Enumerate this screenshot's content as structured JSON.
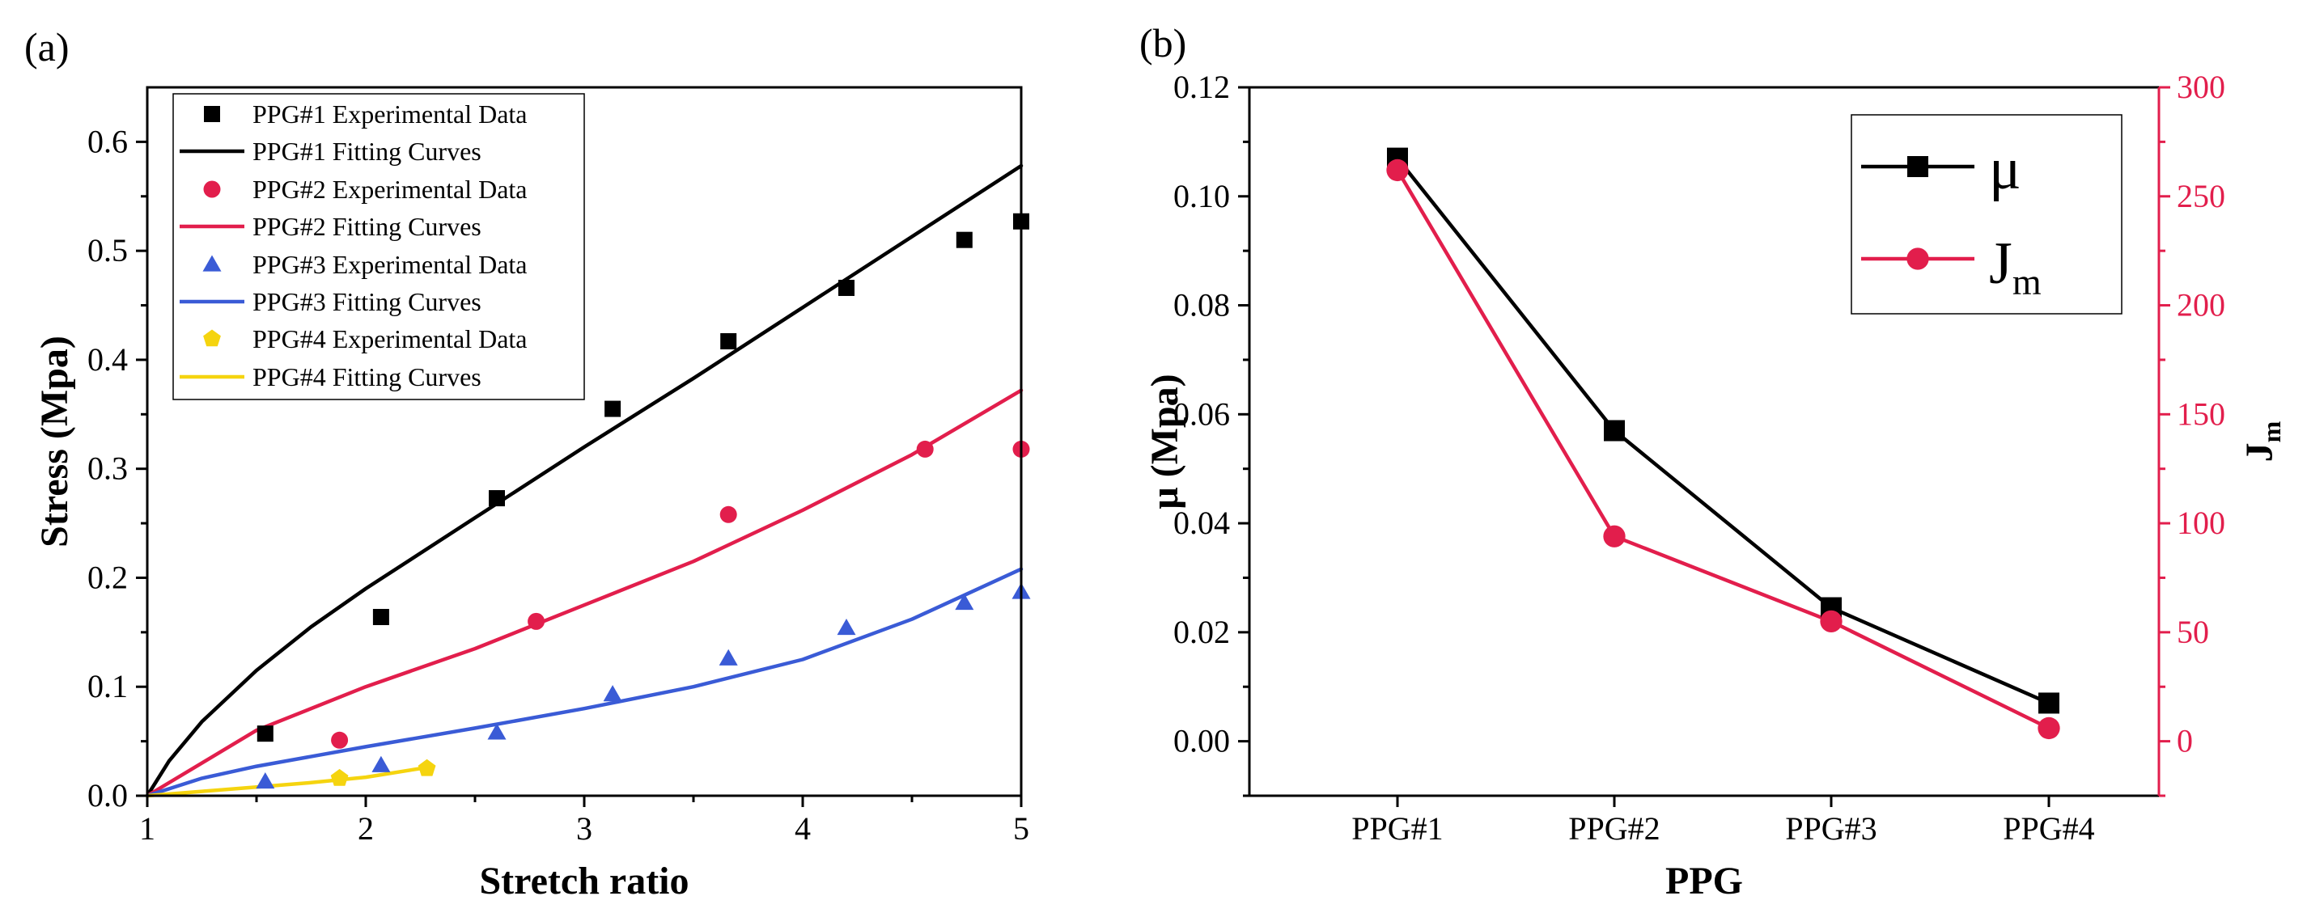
{
  "chart_data": [
    {
      "type": "scatter",
      "panel_label": "(a)",
      "title": "",
      "xlabel": "Stretch ratio",
      "ylabel": "Stress (Mpa)",
      "xlim": [
        1,
        5
      ],
      "ylim": [
        0,
        0.65
      ],
      "xticks": [
        "1",
        "2",
        "3",
        "4",
        "5"
      ],
      "yticks": [
        "0.0",
        "0.1",
        "0.2",
        "0.3",
        "0.4",
        "0.5",
        "0.6"
      ],
      "legend_position": "top-left",
      "legend": [
        "PPG#1 Experimental Data",
        "PPG#1 Fitting Curves",
        "PPG#2 Experimental Data",
        "PPG#2 Fitting Curves",
        "PPG#3 Experimental Data",
        "PPG#3 Fitting Curves",
        "PPG#4 Experimental Data",
        "PPG#4 Fitting Curves"
      ],
      "series": [
        {
          "name": "PPG#1",
          "color": "#000000",
          "marker": "square",
          "data_x": [
            1.54,
            2.07,
            2.6,
            3.13,
            3.66,
            4.2,
            4.74,
            5.0
          ],
          "data_y": [
            0.057,
            0.164,
            0.273,
            0.355,
            0.417,
            0.466,
            0.51,
            0.527
          ],
          "fit_x": [
            1.0,
            1.1,
            1.25,
            1.5,
            1.75,
            2.0,
            2.5,
            3.0,
            3.5,
            4.0,
            4.5,
            5.0
          ],
          "fit_y": [
            0.0,
            0.032,
            0.068,
            0.115,
            0.155,
            0.19,
            0.255,
            0.32,
            0.383,
            0.448,
            0.513,
            0.578
          ]
        },
        {
          "name": "PPG#2",
          "color": "#e21e4c",
          "marker": "circle",
          "data_x": [
            1.88,
            2.78,
            3.66,
            4.56,
            5.0
          ],
          "data_y": [
            0.051,
            0.16,
            0.258,
            0.318,
            0.318
          ],
          "fit_x": [
            1.0,
            1.25,
            1.5,
            2.0,
            2.5,
            3.0,
            3.5,
            4.0,
            4.5,
            5.0
          ],
          "fit_y": [
            0.0,
            0.03,
            0.06,
            0.1,
            0.135,
            0.175,
            0.215,
            0.262,
            0.313,
            0.372
          ]
        },
        {
          "name": "PPG#3",
          "color": "#3a5bd6",
          "marker": "triangle",
          "data_x": [
            1.54,
            2.07,
            2.6,
            3.13,
            3.66,
            4.2,
            4.74,
            5.0
          ],
          "data_y": [
            0.013,
            0.028,
            0.058,
            0.093,
            0.126,
            0.154,
            0.177,
            0.187
          ],
          "fit_x": [
            1.0,
            1.25,
            1.5,
            2.0,
            2.5,
            3.0,
            3.5,
            4.0,
            4.5,
            5.0
          ],
          "fit_y": [
            0.0,
            0.016,
            0.027,
            0.045,
            0.062,
            0.08,
            0.1,
            0.125,
            0.162,
            0.208
          ]
        },
        {
          "name": "PPG#4",
          "color": "#f5d40f",
          "marker": "pentagon",
          "data_x": [
            1.88,
            2.28
          ],
          "data_y": [
            0.016,
            0.025
          ],
          "fit_x": [
            1.0,
            1.25,
            1.5,
            1.75,
            2.0,
            2.28
          ],
          "fit_y": [
            0.0,
            0.004,
            0.008,
            0.012,
            0.017,
            0.026
          ]
        }
      ]
    },
    {
      "type": "line",
      "panel_label": "(b)",
      "title": "",
      "xlabel": "PPG",
      "ylabel_left": "μ (Mpa)",
      "ylabel_right": "Jm",
      "ylabel_right_main": "J",
      "ylabel_right_sub": "m",
      "categories": [
        "PPG#1",
        "PPG#2",
        "PPG#3",
        "PPG#4"
      ],
      "ylim_left": [
        -0.01,
        0.12
      ],
      "ylim_right": [
        -25,
        300
      ],
      "yticks_left": [
        "0.00",
        "0.02",
        "0.04",
        "0.06",
        "0.08",
        "0.10",
        "0.12"
      ],
      "yticks_right": [
        "0",
        "50",
        "100",
        "150",
        "200",
        "250",
        "300"
      ],
      "legend_position": "top-right",
      "legend": [
        "μ",
        "Jm"
      ],
      "legend_main": [
        "μ",
        "J"
      ],
      "legend_sub": [
        "",
        "m"
      ],
      "series": [
        {
          "name": "μ",
          "axis": "left",
          "color": "#000000",
          "marker": "square",
          "values": [
            0.107,
            0.057,
            0.0245,
            0.007
          ]
        },
        {
          "name": "Jm",
          "axis": "right",
          "color": "#e21e4c",
          "marker": "circle",
          "values": [
            262,
            94,
            55,
            6
          ]
        }
      ]
    }
  ]
}
